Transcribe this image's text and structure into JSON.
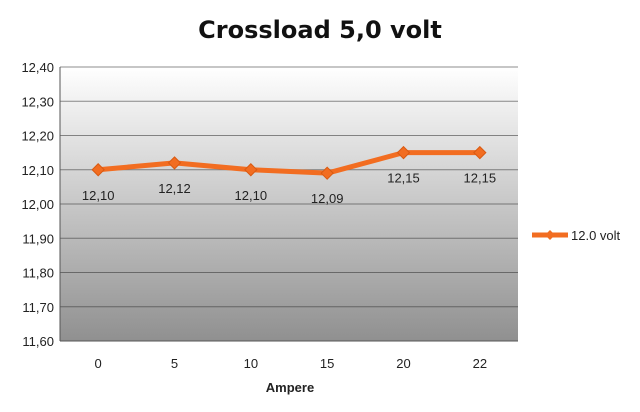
{
  "chart_data": {
    "type": "line",
    "title": "Crossload 5,0 volt",
    "xlabel": "Ampere",
    "ylabel": "",
    "categories": [
      "0",
      "5",
      "10",
      "15",
      "20",
      "22"
    ],
    "series": [
      {
        "name": "12.0 volt",
        "values": [
          12.1,
          12.12,
          12.1,
          12.09,
          12.15,
          12.15
        ],
        "data_labels": [
          "12,10",
          "12,12",
          "12,10",
          "12,09",
          "12,15",
          "12,15"
        ],
        "color": "#F26D21"
      }
    ],
    "ylim": [
      11.6,
      12.4
    ],
    "y_ticks": [
      11.6,
      11.7,
      11.8,
      11.9,
      12.0,
      12.1,
      12.2,
      12.3,
      12.4
    ],
    "y_tick_labels": [
      "11,60",
      "11,70",
      "11,80",
      "11,90",
      "12,00",
      "12,10",
      "12,20",
      "12,30",
      "12,40"
    ],
    "grid": true,
    "legend": "right",
    "plot_gradient": [
      "#ffffff",
      "#909090"
    ]
  }
}
